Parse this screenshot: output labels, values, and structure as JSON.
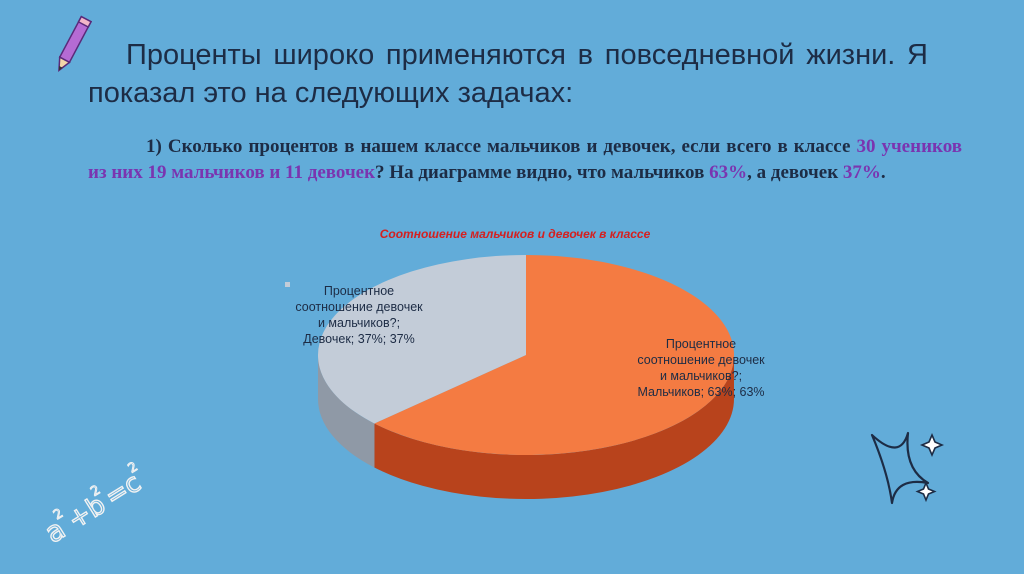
{
  "heading": "Проценты широко применяются в повседневной жизни. Я показал это на следующих задачах:",
  "task": {
    "p1": "1) Сколько процентов в нашем классе мальчиков и девочек, если всего в классе ",
    "n_total": "30",
    "p2": " ",
    "students": "учеников из них 19 мальчиков и 11 девочек",
    "p3": "? На диаграмме видно, что мальчиков ",
    "boys_pct": "63%",
    "p4": ", а девочек ",
    "girls_pct": "37%",
    "p5": "."
  },
  "decor": {
    "formula_icon": "formula-a2-b2-c2-icon",
    "pencil_icon": "pencil-icon",
    "stars_icon": "sparkle-stars-icon"
  },
  "chart_data": {
    "type": "pie",
    "title": "Соотношение мальчиков и девочек в классе",
    "slices": [
      {
        "name": "Мальчиков",
        "value": 63,
        "color": "#f47b42",
        "side_color": "#b8431c",
        "label": [
          "Процентное",
          "соотношение девочек",
          "и мальчиков?;",
          "Мальчиков; 63%; 63%"
        ]
      },
      {
        "name": "Девочек",
        "value": 37,
        "color": "#c3ccd8",
        "side_color": "#8f99a6",
        "label": [
          "Процентное",
          "соотношение девочек",
          "и мальчиков?;",
          "Девочек; 37%; 37%"
        ]
      }
    ],
    "legend": "top-left",
    "style": "3d"
  }
}
